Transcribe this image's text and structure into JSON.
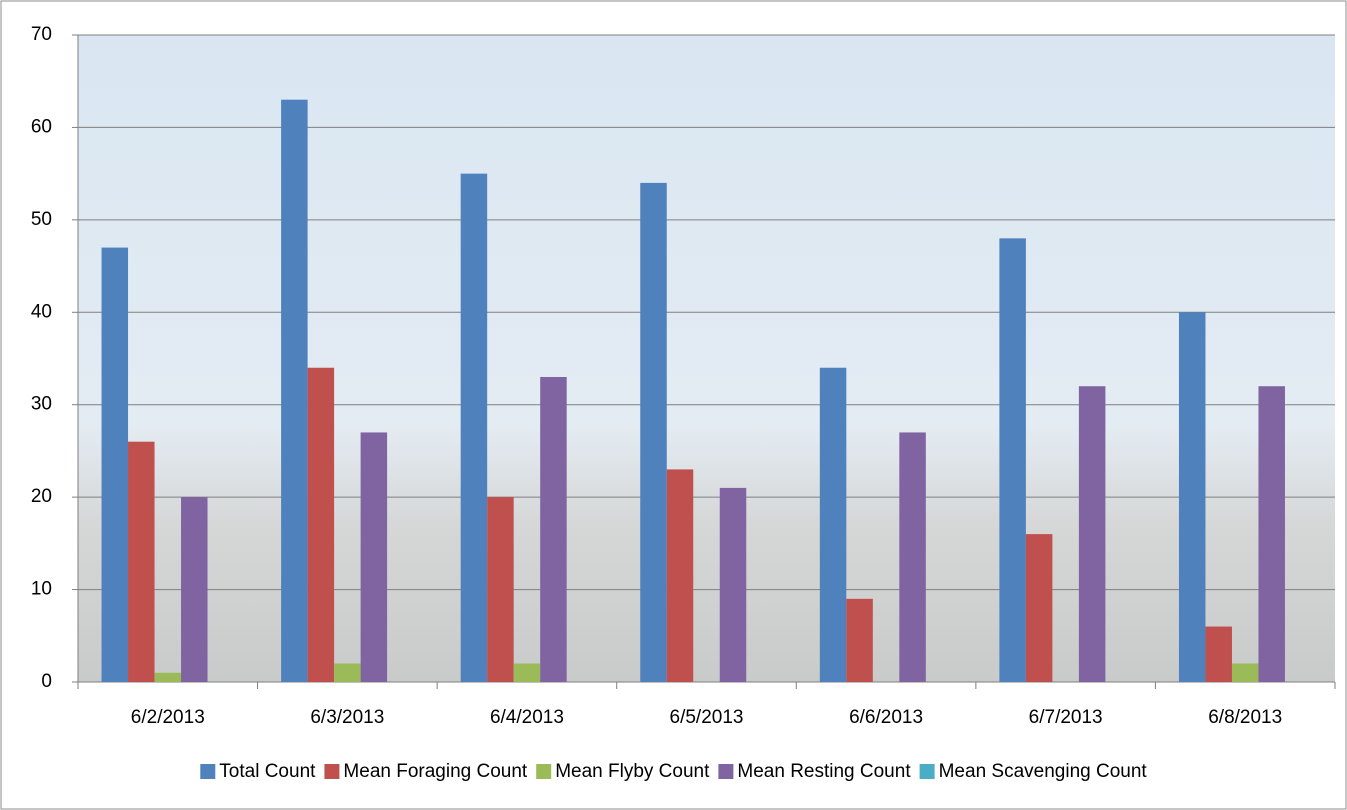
{
  "chart_data": {
    "type": "bar",
    "categories": [
      "6/2/2013",
      "6/3/2013",
      "6/4/2013",
      "6/5/2013",
      "6/6/2013",
      "6/7/2013",
      "6/8/2013"
    ],
    "series": [
      {
        "name": "Total Count",
        "color": "#4f81bd",
        "values": [
          47,
          63,
          55,
          54,
          34,
          48,
          40
        ]
      },
      {
        "name": "Mean Foraging Count",
        "color": "#c0504d",
        "values": [
          26,
          34,
          20,
          23,
          9,
          16,
          6
        ]
      },
      {
        "name": "Mean Flyby Count",
        "color": "#9bbb59",
        "values": [
          1,
          2,
          2,
          0,
          0,
          0,
          2
        ]
      },
      {
        "name": "Mean Resting Count",
        "color": "#8064a2",
        "values": [
          20,
          27,
          33,
          21,
          27,
          32,
          32
        ]
      },
      {
        "name": "Mean Scavenging Count",
        "color": "#4bacc6",
        "values": [
          0,
          0,
          0,
          0,
          0,
          0,
          0
        ]
      }
    ],
    "ylim": [
      0,
      70
    ],
    "yticks": [
      0,
      10,
      20,
      30,
      40,
      50,
      60,
      70
    ],
    "grid": true,
    "legend": "bottom"
  }
}
